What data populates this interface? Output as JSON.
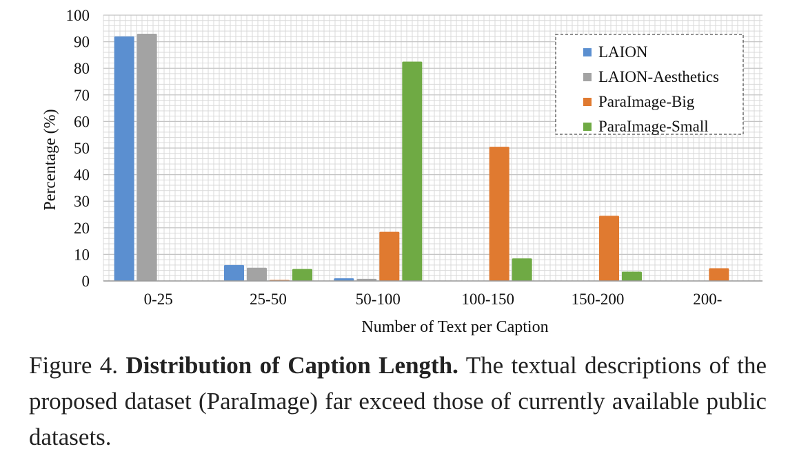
{
  "chart_data": {
    "type": "bar",
    "xlabel": "Number of Text per Caption",
    "ylabel": "Percentage (%)",
    "ylim": [
      0,
      100
    ],
    "yticks": [
      0,
      10,
      20,
      30,
      40,
      50,
      60,
      70,
      80,
      90,
      100
    ],
    "grid": true,
    "legend_position": "top-right",
    "categories": [
      "0-25",
      "25-50",
      "50-100",
      "100-150",
      "150-200",
      "200-"
    ],
    "series": [
      {
        "name": "LAION",
        "color": "#5b8fd0",
        "values": [
          92,
          6,
          1,
          0,
          0,
          0
        ]
      },
      {
        "name": "LAION-Aesthetics",
        "color": "#a3a3a3",
        "values": [
          93,
          5,
          0.8,
          0,
          0,
          0
        ]
      },
      {
        "name": "ParaImage-Big",
        "color": "#e07a30",
        "values": [
          0,
          0.4,
          18.5,
          50.5,
          24.5,
          4.8
        ]
      },
      {
        "name": "ParaImage-Small",
        "color": "#6faa44",
        "values": [
          0,
          4.5,
          82.5,
          8.5,
          3.5,
          0
        ]
      }
    ]
  },
  "caption": {
    "label": "Figure 4.",
    "title": "Distribution of Caption Length.",
    "text": "The textual descriptions of the proposed dataset (ParaImage) far exceed those of currently available public datasets."
  }
}
